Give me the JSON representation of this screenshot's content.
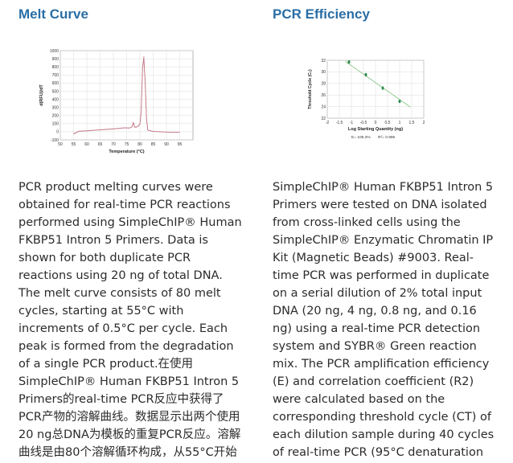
{
  "melt_section": {
    "heading": "Melt Curve",
    "text": "PCR product melting curves were\nobtained for real-time PCR reactions\nperformed using SimpleChIP® Human\nFKBP51 Intron 5 Primers. Data is\nshown for both duplicate PCR\nreactions using 20 ng of total DNA.\nThe melt curve consists of 80 melt\ncycles, starting at 55°C with\nincrements of 0.5°C per cycle. Each\npeak is formed from the degradation\nof a single PCR product.在使用\nSimpleChIP® Human FKBP51 Intron 5\nPrimers的real-time PCR反应中获得了\nPCR产物的溶解曲线。数据显示出两个使用\n20 ng总DNA为模板的重复PCR反应。溶解\n曲线是由80个溶解循环构成，从55°C开始"
  },
  "pcr_section": {
    "heading": "PCR Efficiency",
    "text": "SimpleChIP® Human FKBP51 Intron 5\nPrimers were tested on DNA isolated\nfrom cross-linked cells using the\nSimpleChIP® Enzymatic Chromatin IP\nKit (Magnetic Beads) #9003. Real-\ntime PCR was performed in duplicate\non a serial dilution of 2% total input\nDNA (20 ng, 4 ng, 0.8 ng, and 0.16\nng) using a real-time PCR detection\nsystem and SYBR® Green reaction\nmix. The PCR amplification efficiency\n(E) and correlation coefficient (R2)\nwere calculated based on the\ncorresponding threshold cycle (CT) of\neach dilution sample during 40 cycles\nof real-time PCR (95°C denaturation"
  },
  "chart_data": [
    {
      "type": "line",
      "xlabel": "Temperature (°C)",
      "ylabel": "d(RFU)/dT",
      "xlim": [
        50,
        100
      ],
      "ylim": [
        -100,
        1000
      ],
      "x_ticks": [
        "50",
        "55",
        "60",
        "65",
        "70",
        "75",
        "80",
        "85",
        "90",
        "95"
      ],
      "y_ticks": [
        "1000",
        "900",
        "800",
        "700",
        "600",
        "500",
        "400",
        "300",
        "200",
        "100",
        "0",
        "-100"
      ],
      "grid": true,
      "line_color": "#c07080",
      "series": [
        {
          "x": [
            55,
            57,
            60,
            63,
            66,
            69,
            72,
            74,
            76,
            77,
            77.5,
            78,
            79,
            80,
            80.5,
            81,
            81.5,
            82,
            82.5,
            83,
            85,
            88,
            91,
            94,
            95
          ],
          "y": [
            -30,
            5,
            10,
            18,
            25,
            32,
            40,
            48,
            45,
            58,
            120,
            55,
            60,
            90,
            250,
            800,
            930,
            600,
            150,
            20,
            5,
            0,
            -5,
            -5,
            -5
          ]
        },
        {
          "x": [
            55,
            57,
            60,
            63,
            66,
            69,
            72,
            74,
            76,
            77,
            77.5,
            78,
            79,
            80,
            80.5,
            81,
            81.5,
            82,
            82.5,
            83,
            85,
            88,
            91,
            94,
            95
          ],
          "y": [
            -25,
            8,
            12,
            20,
            27,
            34,
            42,
            50,
            47,
            60,
            110,
            57,
            62,
            95,
            260,
            780,
            900,
            580,
            140,
            18,
            3,
            -2,
            -6,
            -6,
            -6
          ]
        }
      ]
    },
    {
      "type": "scatter",
      "xlabel": "Log Starting Quantity (ng)",
      "ylabel": "Threshold Cycle (C",
      "ylabel_subscript": "T",
      "ylabel_suffix": ")",
      "xlim": [
        -2,
        2
      ],
      "ylim": [
        22,
        32
      ],
      "x_ticks": [
        "-2",
        "-1.5",
        "-1",
        "-0.5",
        "0",
        "0.5",
        "1",
        "1.5",
        "2"
      ],
      "y_ticks": [
        "32",
        "30",
        "28",
        "26",
        "24",
        "22"
      ],
      "grid": true,
      "point_color": "#2e8b4e",
      "fit_line": {
        "x": [
          -1.25,
          1.45
        ],
        "y": [
          31.8,
          23.9
        ]
      },
      "series": [
        {
          "x": [
            -1.1,
            -0.4,
            0.3,
            1.0
          ],
          "y": [
            31.6,
            29.4,
            27.1,
            24.8
          ]
        },
        {
          "x": [
            -1.1,
            -0.4,
            0.3,
            1.0
          ],
          "y": [
            31.8,
            29.6,
            27.3,
            25.0
          ]
        }
      ],
      "annotations": [
        "E= 106.3%",
        "R²= 0.996"
      ]
    }
  ]
}
